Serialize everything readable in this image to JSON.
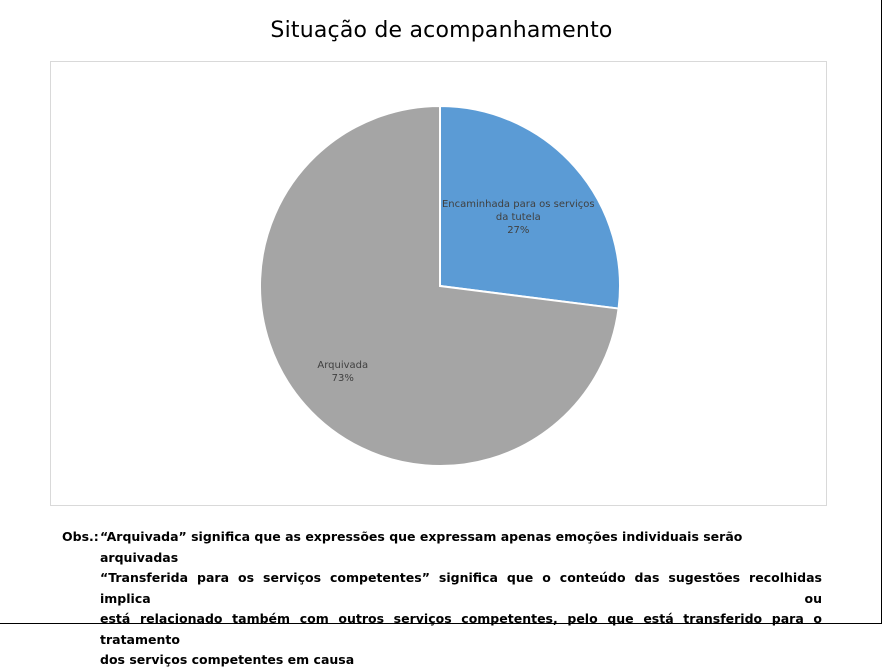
{
  "chart_data": {
    "type": "pie",
    "title": "Situação de acompanhamento",
    "slices": [
      {
        "label_lines": [
          "Encaminhada para os serviços",
          "da tutela"
        ],
        "value": 27,
        "value_label": "27%",
        "color": "#5b9bd5"
      },
      {
        "label_lines": [
          "Arquivada"
        ],
        "value": 73,
        "value_label": "73%",
        "color": "#a5a5a5"
      }
    ]
  },
  "notes": {
    "prefix": "Obs.:",
    "lines": [
      "“Arquivada” significa que as expressões que expressam apenas emoções individuais serão arquivadas",
      "“Transferida para os serviços competentes” significa que o conteúdo das sugestões recolhidas implica ou",
      "está relacionado também com outros serviços competentes, pelo que está transferido para o tratamento",
      "dos serviços competentes em causa"
    ]
  }
}
